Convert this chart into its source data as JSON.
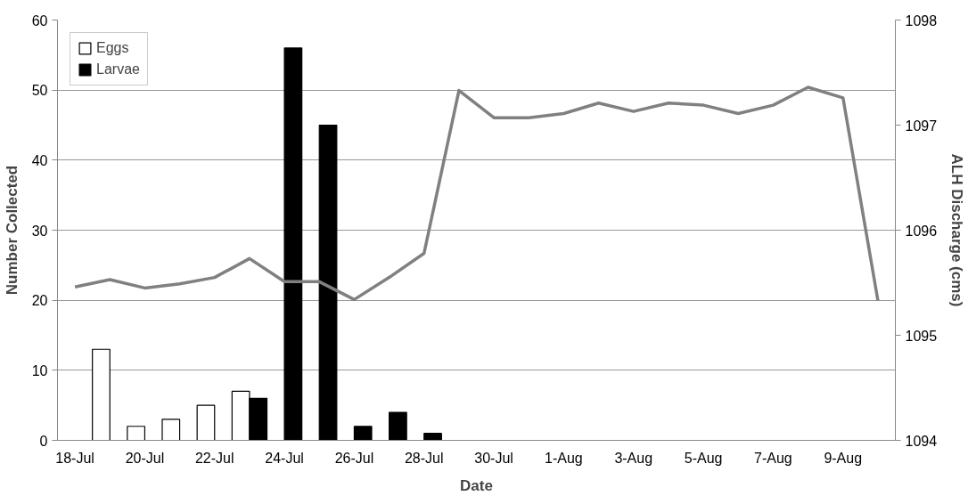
{
  "chart_data": {
    "type": "bar",
    "xlabel": "Date",
    "ylabel": "Number Collected",
    "y2label": "ALH Discharge (cms)",
    "categories": [
      "18-Jul",
      null,
      "20-Jul",
      null,
      "22-Jul",
      null,
      "24-Jul",
      null,
      "26-Jul",
      null,
      "28-Jul",
      null,
      "30-Jul",
      null,
      "1-Aug",
      null,
      "3-Aug",
      null,
      "5-Aug",
      null,
      "7-Aug",
      null,
      "9-Aug",
      null
    ],
    "series": [
      {
        "name": "Eggs",
        "color": "#ffffff",
        "values": [
          null,
          13,
          2,
          3,
          5,
          7,
          null,
          null,
          null,
          null,
          null,
          null,
          null,
          null,
          null,
          null,
          null,
          null,
          null,
          null,
          null,
          null,
          null,
          null
        ]
      },
      {
        "name": "Larvae",
        "color": "#000000",
        "values": [
          null,
          null,
          null,
          null,
          null,
          6,
          56,
          45,
          2,
          4,
          1,
          null,
          null,
          null,
          null,
          null,
          null,
          null,
          null,
          null,
          null,
          null,
          null,
          null
        ]
      },
      {
        "type": "line",
        "axis": "y2",
        "color": "#808080",
        "values": [
          1095.46,
          1095.53,
          1095.45,
          1095.49,
          1095.55,
          1095.73,
          1095.51,
          1095.51,
          1095.34,
          1095.55,
          1095.78,
          1097.33,
          1097.07,
          1097.07,
          1097.11,
          1097.21,
          1097.13,
          1097.21,
          1097.19,
          1097.11,
          1097.19,
          1097.36,
          1097.26,
          1095.33
        ]
      }
    ],
    "ylim": [
      0,
      60
    ],
    "yticks": [
      0,
      10,
      20,
      30,
      40,
      50,
      60
    ],
    "y2lim": [
      1094,
      1098
    ],
    "y2ticks": [
      1094,
      1095,
      1096,
      1097,
      1098
    ],
    "grid": "y",
    "legend": "top left"
  }
}
